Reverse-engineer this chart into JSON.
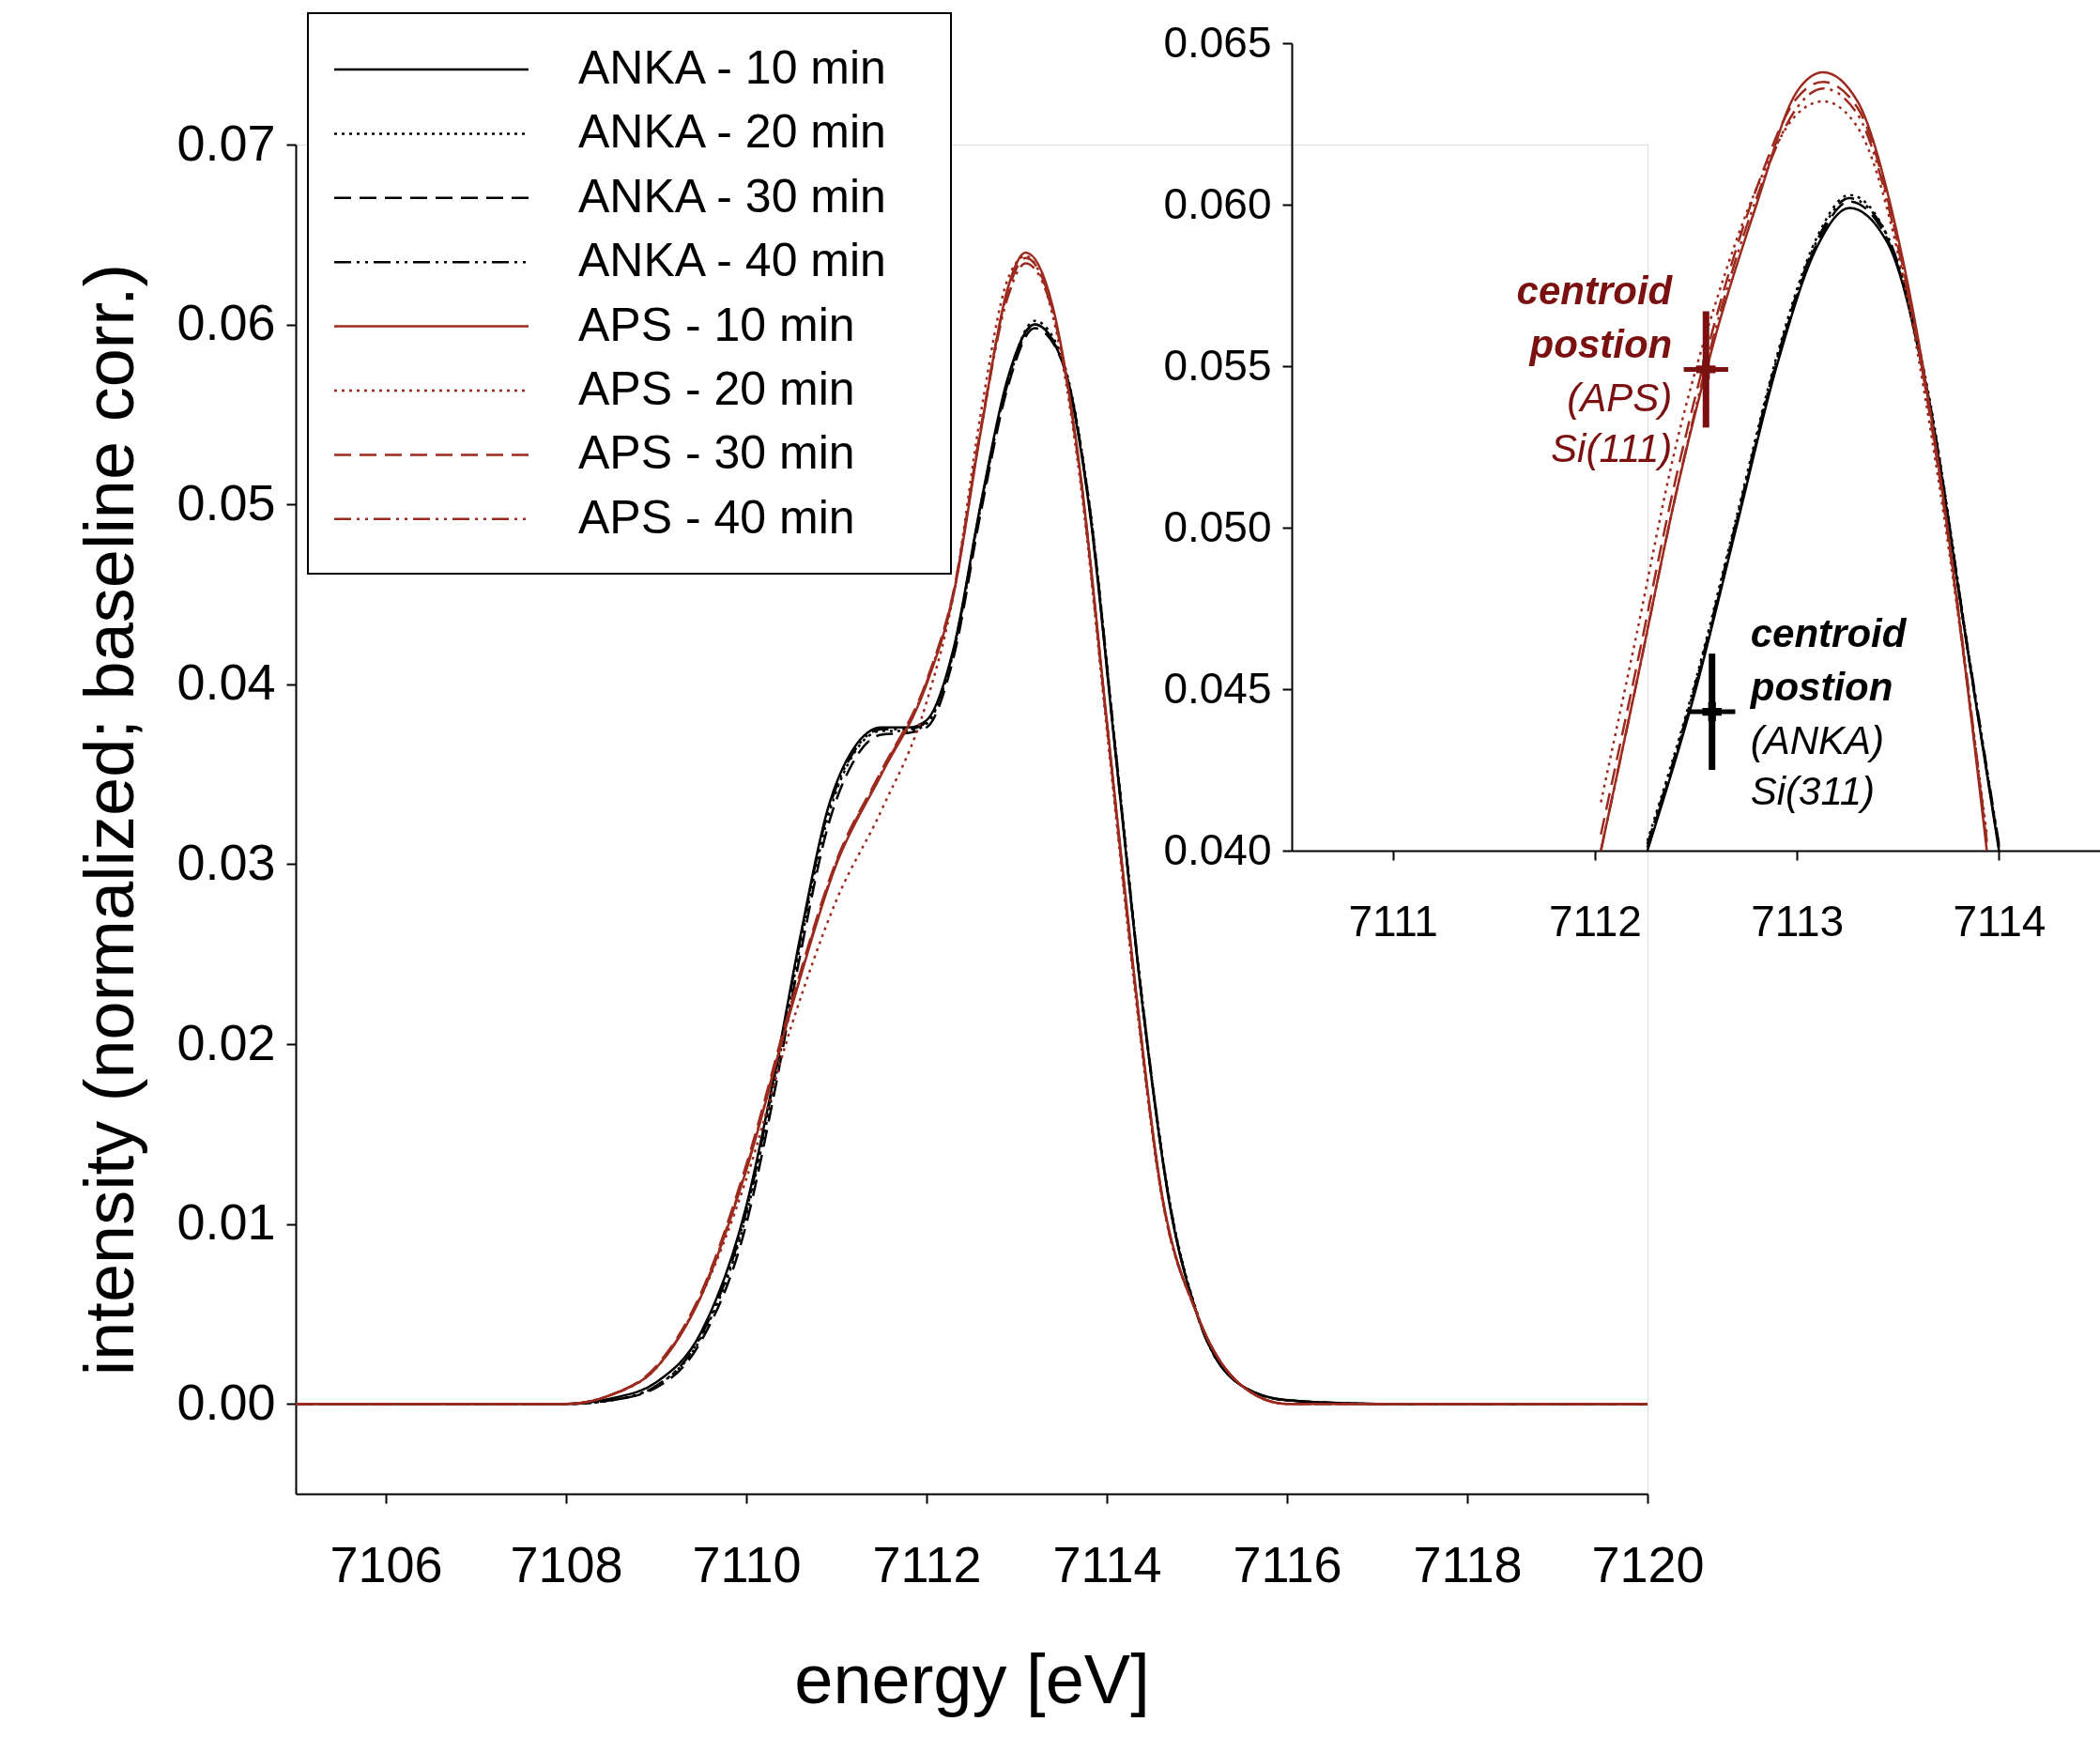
{
  "chart_data": [
    {
      "type": "line",
      "xlabel": "energy [eV]",
      "ylabel": "intensity (normalized; baseline corr.)",
      "xlim": [
        7105,
        7120
      ],
      "ylim": [
        -0.005,
        0.07
      ],
      "xticks": [
        7106,
        7108,
        7110,
        7112,
        7114,
        7116,
        7118,
        7120
      ],
      "yticks": [
        {
          "value": 0,
          "label": "0.00"
        },
        {
          "value": 0.01,
          "label": "0.01"
        },
        {
          "value": 0.02,
          "label": "0.02"
        },
        {
          "value": 0.03,
          "label": "0.03"
        },
        {
          "value": 0.04,
          "label": "0.04"
        },
        {
          "value": 0.05,
          "label": "0.05"
        },
        {
          "value": 0.06,
          "label": "0.06"
        },
        {
          "value": 0.07,
          "label": "0.07"
        }
      ],
      "grid": false,
      "legend": "top left",
      "series": [
        {
          "name": "ANKA - 10 min",
          "color": "#000000",
          "line_style": "solid",
          "x": [
            7105,
            7108,
            7108.5,
            7109,
            7109.5,
            7110,
            7110.3,
            7110.6,
            7110.9,
            7111.2,
            7111.5,
            7111.8,
            7112.0,
            7112.3,
            7112.6,
            7112.9,
            7113.2,
            7113.5,
            7113.8,
            7114.1,
            7114.4,
            7114.7,
            7115,
            7115.5,
            7116,
            7117,
            7120
          ],
          "values": [
            0,
            0,
            0.0003,
            0.0012,
            0.004,
            0.011,
            0.018,
            0.026,
            0.033,
            0.0365,
            0.0376,
            0.0376,
            0.038,
            0.042,
            0.05,
            0.057,
            0.06,
            0.058,
            0.05,
            0.036,
            0.022,
            0.011,
            0.005,
            0.001,
            0.0002,
            0,
            0
          ]
        },
        {
          "name": "ANKA - 20 min",
          "color": "#000000",
          "line_style": "dotted",
          "x": [
            7105,
            7108,
            7108.5,
            7109,
            7109.5,
            7110,
            7110.3,
            7110.6,
            7110.9,
            7111.2,
            7111.5,
            7111.8,
            7112.0,
            7112.3,
            7112.6,
            7112.9,
            7113.2,
            7113.5,
            7113.8,
            7114.1,
            7114.4,
            7114.7,
            7115,
            7115.5,
            7116,
            7117,
            7120
          ],
          "values": [
            0,
            0,
            0.0002,
            0.001,
            0.0037,
            0.0105,
            0.0175,
            0.0255,
            0.0325,
            0.0362,
            0.0374,
            0.0374,
            0.0378,
            0.0418,
            0.0498,
            0.0568,
            0.0602,
            0.0582,
            0.0503,
            0.0363,
            0.0222,
            0.0112,
            0.0051,
            0.001,
            0.0002,
            0,
            0
          ]
        },
        {
          "name": "ANKA - 30 min",
          "color": "#000000",
          "line_style": "dashed",
          "x": [
            7105,
            7108,
            7108.5,
            7109,
            7109.5,
            7110,
            7110.3,
            7110.6,
            7110.9,
            7111.2,
            7111.5,
            7111.8,
            7112.0,
            7112.3,
            7112.6,
            7112.9,
            7113.2,
            7113.5,
            7113.8,
            7114.1,
            7114.4,
            7114.7,
            7115,
            7115.5,
            7116,
            7117,
            7120
          ],
          "values": [
            0,
            0,
            0.0002,
            0.0009,
            0.0035,
            0.01,
            0.017,
            0.025,
            0.032,
            0.0358,
            0.0372,
            0.0373,
            0.0376,
            0.0415,
            0.0495,
            0.0565,
            0.0598,
            0.058,
            0.0502,
            0.0362,
            0.0221,
            0.0111,
            0.005,
            0.001,
            0.0002,
            0,
            0
          ]
        },
        {
          "name": "ANKA - 40 min",
          "color": "#000000",
          "line_style": "dashdot",
          "x": [
            7105,
            7108,
            7108.5,
            7109,
            7109.5,
            7110,
            7110.3,
            7110.6,
            7110.9,
            7111.2,
            7111.5,
            7111.8,
            7112.0,
            7112.3,
            7112.6,
            7112.9,
            7113.2,
            7113.5,
            7113.8,
            7114.1,
            7114.4,
            7114.7,
            7115,
            7115.5,
            7116,
            7117,
            7120
          ],
          "values": [
            0,
            0,
            0.0002,
            0.001,
            0.0038,
            0.0107,
            0.0178,
            0.0258,
            0.0328,
            0.0363,
            0.0375,
            0.0375,
            0.0379,
            0.0419,
            0.0499,
            0.0567,
            0.06,
            0.0581,
            0.0501,
            0.0361,
            0.0221,
            0.0111,
            0.005,
            0.001,
            0.0002,
            0,
            0
          ]
        },
        {
          "name": "APS - 10 min",
          "color": "#9c2a1e",
          "line_style": "solid",
          "x": [
            7105,
            7108,
            7108.5,
            7109,
            7109.5,
            7110,
            7110.5,
            7111,
            7111.5,
            7112,
            7112.3,
            7112.6,
            7112.9,
            7113.1,
            7113.4,
            7113.7,
            7114.0,
            7114.3,
            7114.6,
            7115,
            7115.5,
            7116,
            7120
          ],
          "values": [
            0,
            0,
            0.0005,
            0.002,
            0.006,
            0.013,
            0.022,
            0.03,
            0.035,
            0.04,
            0.045,
            0.054,
            0.062,
            0.064,
            0.061,
            0.052,
            0.038,
            0.024,
            0.012,
            0.005,
            0.001,
            0,
            0
          ]
        },
        {
          "name": "APS - 20 min",
          "color": "#9c2a1e",
          "line_style": "dotted",
          "x": [
            7105,
            7108,
            7108.5,
            7109,
            7109.5,
            7110,
            7110.5,
            7111,
            7111.5,
            7112,
            7112.3,
            7112.6,
            7112.9,
            7113.1,
            7113.4,
            7113.7,
            7114.0,
            7114.3,
            7114.6,
            7115,
            7115.5,
            7116,
            7120
          ],
          "values": [
            0,
            0,
            0.0005,
            0.002,
            0.006,
            0.0125,
            0.021,
            0.028,
            0.033,
            0.039,
            0.045,
            0.055,
            0.0625,
            0.0638,
            0.0605,
            0.0515,
            0.0375,
            0.0235,
            0.0118,
            0.005,
            0.001,
            0,
            0
          ]
        },
        {
          "name": "APS - 30 min",
          "color": "#9c2a1e",
          "line_style": "dashed",
          "x": [
            7105,
            7108,
            7108.5,
            7109,
            7109.5,
            7110,
            7110.5,
            7111,
            7111.5,
            7112,
            7112.3,
            7112.6,
            7112.9,
            7113.1,
            7113.4,
            7113.7,
            7114.0,
            7114.3,
            7114.6,
            7115,
            7115.5,
            7116,
            7120
          ],
          "values": [
            0,
            0,
            0.0005,
            0.0021,
            0.0062,
            0.0133,
            0.0223,
            0.0302,
            0.0352,
            0.0402,
            0.0452,
            0.0542,
            0.0618,
            0.0637,
            0.0608,
            0.0518,
            0.0378,
            0.0238,
            0.0119,
            0.005,
            0.001,
            0,
            0
          ]
        },
        {
          "name": "APS - 40 min",
          "color": "#9c2a1e",
          "line_style": "dashdot",
          "x": [
            7105,
            7108,
            7108.5,
            7109,
            7109.5,
            7110,
            7110.5,
            7111,
            7111.5,
            7112,
            7112.3,
            7112.6,
            7112.9,
            7113.1,
            7113.4,
            7113.7,
            7114.0,
            7114.3,
            7114.6,
            7115,
            7115.5,
            7116,
            7120
          ],
          "values": [
            0,
            0,
            0.0005,
            0.002,
            0.0061,
            0.0131,
            0.0221,
            0.0301,
            0.0351,
            0.0401,
            0.0451,
            0.0541,
            0.0615,
            0.0634,
            0.0607,
            0.0519,
            0.0379,
            0.0239,
            0.0119,
            0.005,
            0.001,
            0,
            0
          ]
        }
      ]
    },
    {
      "type": "line",
      "xlim": [
        7110.5,
        7114.5
      ],
      "ylim": [
        0.04,
        0.065
      ],
      "xticks": [
        7111,
        7112,
        7113,
        7114
      ],
      "yticks": [
        {
          "value": 0.04,
          "label": "0.040"
        },
        {
          "value": 0.045,
          "label": "0.045"
        },
        {
          "value": 0.05,
          "label": "0.050"
        },
        {
          "value": 0.055,
          "label": "0.055"
        },
        {
          "value": 0.06,
          "label": "0.060"
        },
        {
          "value": 0.065,
          "label": "0.065"
        }
      ],
      "grid": false,
      "series": [
        {
          "color": "#000000",
          "line_style": "solid",
          "x": [
            7112.26,
            7112.5,
            7112.7,
            7112.9,
            7113.1,
            7113.26,
            7113.45,
            7113.65,
            7113.85,
            7114.0
          ],
          "values": [
            0.04,
            0.045,
            0.05,
            0.055,
            0.0587,
            0.0599,
            0.0588,
            0.054,
            0.046,
            0.04
          ]
        },
        {
          "color": "#000000",
          "line_style": "dotted",
          "x": [
            7112.26,
            7112.5,
            7112.7,
            7112.9,
            7113.1,
            7113.26,
            7113.45,
            7113.65,
            7113.85,
            7114.0
          ],
          "values": [
            0.0403,
            0.0453,
            0.0503,
            0.0553,
            0.059,
            0.0603,
            0.059,
            0.0542,
            0.0461,
            0.0401
          ]
        },
        {
          "color": "#000000",
          "line_style": "dashed",
          "x": [
            7112.26,
            7112.5,
            7112.7,
            7112.9,
            7113.1,
            7113.26,
            7113.45,
            7113.65,
            7113.85,
            7114.0
          ],
          "values": [
            0.0401,
            0.0451,
            0.0501,
            0.0551,
            0.0588,
            0.0601,
            0.0589,
            0.0541,
            0.046,
            0.0401
          ]
        },
        {
          "color": "#000000",
          "line_style": "dashdot",
          "x": [
            7112.26,
            7112.5,
            7112.7,
            7112.9,
            7113.1,
            7113.26,
            7113.45,
            7113.65,
            7113.85,
            7114.0
          ],
          "values": [
            0.0402,
            0.0452,
            0.0502,
            0.0552,
            0.0589,
            0.0602,
            0.059,
            0.0541,
            0.0461,
            0.0402
          ]
        },
        {
          "color": "#9c2a1e",
          "line_style": "solid",
          "x": [
            7112.03,
            7112.2,
            7112.4,
            7112.6,
            7112.8,
            7113.0,
            7113.13,
            7113.3,
            7113.5,
            7113.7,
            7113.94
          ],
          "values": [
            0.04,
            0.045,
            0.051,
            0.056,
            0.06,
            0.0635,
            0.0641,
            0.0632,
            0.059,
            0.052,
            0.04
          ]
        },
        {
          "color": "#9c2a1e",
          "line_style": "dotted",
          "x": [
            7112.03,
            7112.2,
            7112.4,
            7112.6,
            7112.8,
            7113.0,
            7113.13,
            7113.3,
            7113.5,
            7113.7,
            7113.94
          ],
          "values": [
            0.0415,
            0.0465,
            0.0525,
            0.057,
            0.0605,
            0.0628,
            0.0632,
            0.0624,
            0.0585,
            0.0515,
            0.0405
          ]
        },
        {
          "color": "#9c2a1e",
          "line_style": "dashed",
          "x": [
            7112.03,
            7112.2,
            7112.4,
            7112.6,
            7112.8,
            7113.0,
            7113.13,
            7113.3,
            7113.5,
            7113.7,
            7113.94
          ],
          "values": [
            0.0405,
            0.0455,
            0.0515,
            0.0565,
            0.0605,
            0.0633,
            0.0638,
            0.063,
            0.0588,
            0.0518,
            0.0402
          ]
        },
        {
          "color": "#9c2a1e",
          "line_style": "dashdot",
          "x": [
            7112.03,
            7112.2,
            7112.4,
            7112.6,
            7112.8,
            7113.0,
            7113.13,
            7113.3,
            7113.5,
            7113.7,
            7113.94
          ],
          "values": [
            0.04,
            0.045,
            0.051,
            0.0562,
            0.0602,
            0.063,
            0.0636,
            0.0628,
            0.0587,
            0.0519,
            0.0403
          ]
        },
        {
          "type": "scatter",
          "color": "#7a1010",
          "marker": "cross",
          "x": [
            7112.55
          ],
          "values": [
            0.0549
          ],
          "errors": [
            0.0018
          ],
          "xerrors": [
            0.11
          ]
        },
        {
          "type": "scatter",
          "color": "#000000",
          "marker": "cross",
          "x": [
            7112.58
          ],
          "values": [
            0.0443
          ],
          "errors": [
            0.0018
          ],
          "xerrors": [
            0.115
          ]
        }
      ],
      "annotations": [
        "centroid",
        "postion",
        "(APS)",
        "Si(111)",
        "centroid",
        "postion",
        "(ANKA)",
        "Si(311)"
      ]
    }
  ]
}
